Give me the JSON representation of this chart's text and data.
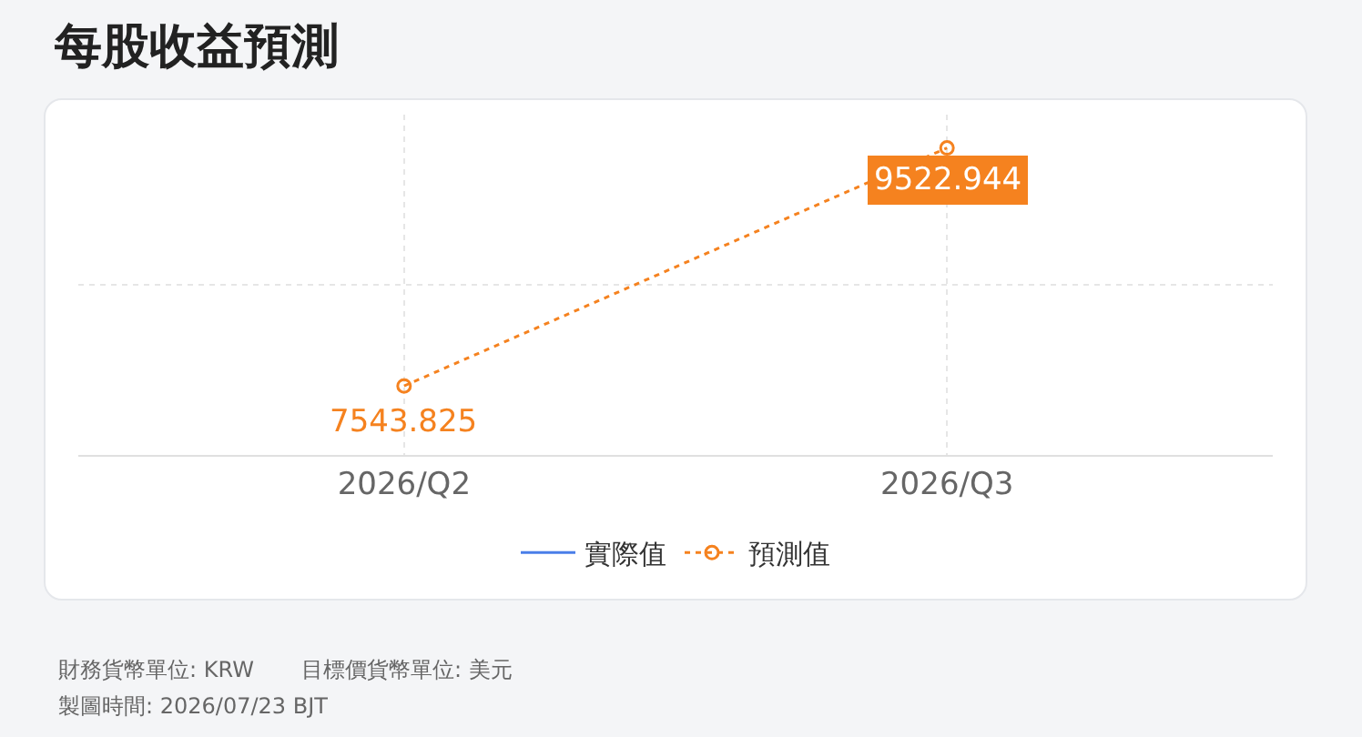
{
  "chart_data": {
    "type": "line",
    "title": "每股收益預測",
    "categories": [
      "2026/Q2",
      "2026/Q3"
    ],
    "series": [
      {
        "name": "實際值",
        "color": "#4a7ee8",
        "values": [
          null,
          null
        ]
      },
      {
        "name": "預測值",
        "color": "#f5821f",
        "values": [
          7543.825,
          9522.944
        ],
        "line_style": "dotted",
        "marker": "circle"
      }
    ],
    "data_labels": true,
    "grid": true,
    "legend": "bottom",
    "relative": false,
    "annotations": [
      "財務貨幣單位: KRW",
      "目標價貨幣單位: 美元",
      "製圖時間: 2026/07/23 BJT"
    ]
  }
}
